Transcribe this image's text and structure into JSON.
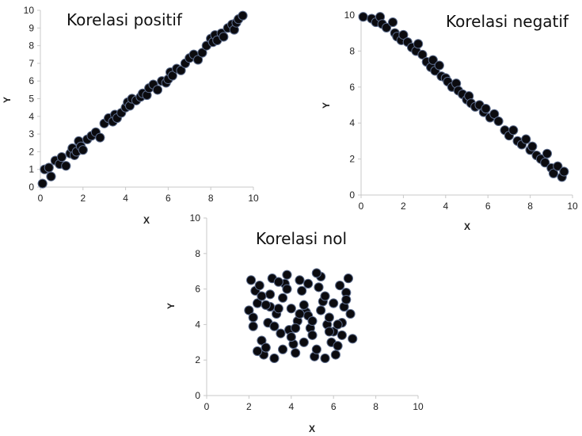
{
  "chart_data": [
    {
      "type": "scatter",
      "title": "Korelasi positif",
      "xlabel": "X",
      "ylabel": "Y",
      "xlim": [
        0,
        10
      ],
      "ylim": [
        0,
        10
      ],
      "x_ticks": [
        0,
        2,
        4,
        6,
        8,
        10
      ],
      "y_ticks": [
        0,
        1,
        2,
        3,
        4,
        5,
        6,
        7,
        8,
        9,
        10
      ],
      "grid": false,
      "marker_color": "#0b0b0f",
      "x": [
        0.1,
        0.2,
        0.4,
        0.5,
        0.7,
        0.9,
        1.0,
        1.2,
        1.4,
        1.5,
        1.6,
        1.7,
        1.8,
        1.9,
        2.0,
        2.2,
        2.4,
        2.6,
        2.8,
        3.0,
        3.2,
        3.4,
        3.5,
        3.6,
        3.8,
        4.0,
        4.1,
        4.2,
        4.3,
        4.5,
        4.7,
        4.8,
        5.0,
        5.1,
        5.3,
        5.5,
        5.7,
        5.9,
        6.0,
        6.1,
        6.2,
        6.4,
        6.6,
        6.8,
        7.0,
        7.2,
        7.4,
        7.6,
        7.8,
        8.0,
        8.1,
        8.2,
        8.3,
        8.5,
        8.6,
        8.8,
        9.0,
        9.1,
        9.2,
        9.3,
        9.5
      ],
      "y": [
        0.2,
        1.0,
        1.1,
        0.6,
        1.5,
        1.3,
        1.7,
        1.2,
        1.9,
        2.2,
        1.8,
        2.0,
        2.6,
        2.3,
        2.1,
        2.7,
        2.9,
        3.1,
        2.8,
        3.6,
        3.9,
        3.7,
        4.1,
        3.9,
        4.2,
        4.5,
        4.8,
        4.6,
        5.0,
        4.9,
        5.1,
        5.3,
        5.2,
        5.6,
        5.8,
        5.5,
        6.0,
        5.9,
        6.1,
        6.5,
        6.3,
        6.7,
        6.6,
        7.0,
        7.3,
        7.5,
        7.2,
        7.6,
        8.0,
        8.4,
        8.2,
        8.6,
        8.3,
        8.7,
        8.5,
        9.0,
        9.2,
        8.9,
        9.3,
        9.5,
        9.7
      ]
    },
    {
      "type": "scatter",
      "title": "Korelasi negatif",
      "xlabel": "X",
      "ylabel": "Y",
      "xlim": [
        0,
        10
      ],
      "ylim": [
        0,
        10
      ],
      "x_ticks": [
        0,
        2,
        4,
        6,
        8,
        10
      ],
      "y_ticks": [
        0,
        2,
        4,
        6,
        8,
        10
      ],
      "grid": false,
      "marker_color": "#0b0b0f",
      "x": [
        0.1,
        0.5,
        0.7,
        0.9,
        1.0,
        1.2,
        1.5,
        1.6,
        1.7,
        1.9,
        2.0,
        2.2,
        2.4,
        2.6,
        2.7,
        2.9,
        3.1,
        3.3,
        3.4,
        3.5,
        3.7,
        3.8,
        4.0,
        4.1,
        4.3,
        4.5,
        4.6,
        4.8,
        5.0,
        5.1,
        5.2,
        5.4,
        5.6,
        5.8,
        5.9,
        6.1,
        6.3,
        6.5,
        6.8,
        7.0,
        7.2,
        7.4,
        7.6,
        7.8,
        8.0,
        8.1,
        8.3,
        8.5,
        8.7,
        8.8,
        9.0,
        9.1,
        9.3,
        9.5,
        9.6
      ],
      "y": [
        9.9,
        9.8,
        9.6,
        9.9,
        9.5,
        9.3,
        9.6,
        9.0,
        8.8,
        8.6,
        8.9,
        8.5,
        8.2,
        8.0,
        8.4,
        7.8,
        7.4,
        7.1,
        7.5,
        6.9,
        7.2,
        6.6,
        6.5,
        6.3,
        6.0,
        6.2,
        5.8,
        5.6,
        5.3,
        5.5,
        5.1,
        4.9,
        5.0,
        4.6,
        4.8,
        4.3,
        4.5,
        4.1,
        3.6,
        3.3,
        3.6,
        3.0,
        2.8,
        3.1,
        2.5,
        2.7,
        2.2,
        2.0,
        1.8,
        2.3,
        1.5,
        1.2,
        1.6,
        1.0,
        1.3
      ]
    },
    {
      "type": "scatter",
      "title": "Korelasi nol",
      "xlabel": "X",
      "ylabel": "Y",
      "xlim": [
        0,
        10
      ],
      "ylim": [
        0,
        10
      ],
      "x_ticks": [
        0,
        2,
        4,
        6,
        8,
        10
      ],
      "y_ticks": [
        0,
        2,
        4,
        6,
        8,
        10
      ],
      "grid": false,
      "marker_color": "#0b0b0f",
      "x": [
        2.1,
        2.3,
        2.0,
        2.5,
        2.2,
        2.7,
        2.4,
        2.9,
        2.6,
        3.1,
        2.8,
        3.3,
        3.0,
        3.5,
        3.2,
        3.7,
        3.4,
        3.9,
        3.6,
        4.1,
        3.8,
        4.3,
        4.0,
        4.5,
        4.2,
        4.7,
        4.4,
        4.9,
        4.6,
        5.1,
        4.8,
        5.3,
        5.0,
        5.5,
        5.2,
        5.7,
        5.4,
        5.9,
        5.6,
        6.1,
        5.8,
        6.3,
        6.0,
        6.5,
        6.2,
        6.7,
        6.4,
        6.9,
        6.6,
        6.8,
        2.2,
        3.0,
        3.8,
        4.6,
        5.4,
        6.2,
        2.6,
        3.4,
        4.2,
        5.0,
        5.8,
        6.6,
        2.4,
        3.2,
        4.0,
        4.8,
        5.6,
        6.4,
        2.8,
        3.6,
        4.4,
        5.2,
        6.0
      ],
      "y": [
        6.5,
        5.9,
        4.8,
        6.2,
        3.9,
        2.3,
        5.2,
        4.1,
        3.1,
        6.6,
        2.7,
        4.6,
        5.7,
        3.5,
        2.1,
        6.3,
        4.9,
        3.7,
        5.5,
        2.9,
        6.8,
        4.2,
        3.3,
        5.9,
        2.4,
        4.7,
        6.5,
        3.8,
        5.1,
        2.2,
        4.5,
        6.1,
        3.4,
        5.3,
        2.6,
        4.0,
        6.7,
        3.0,
        5.6,
        2.3,
        4.4,
        6.2,
        3.6,
        5.0,
        2.8,
        6.6,
        4.1,
        3.2,
        5.8,
        4.6,
        4.4,
        5.0,
        6.0,
        3.0,
        4.8,
        4.0,
        5.6,
        6.4,
        3.8,
        4.2,
        3.6,
        5.4,
        2.5,
        3.9,
        4.9,
        6.3,
        2.1,
        3.4,
        5.1,
        2.6,
        4.6,
        6.9,
        5.2
      ]
    }
  ]
}
